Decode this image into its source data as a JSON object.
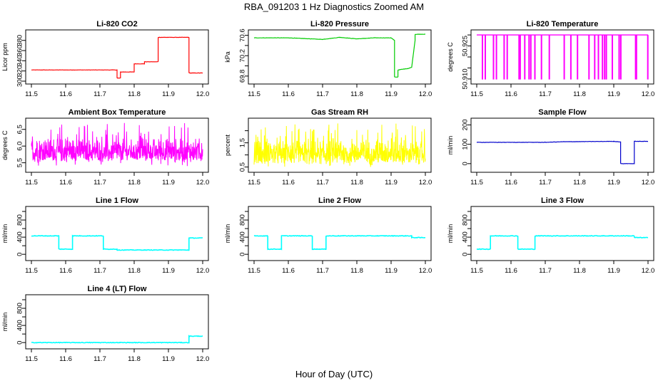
{
  "title": "RBA_091203  1 Hz Diagnostics Zoomed AM",
  "xlabel": "Hour of Day (UTC)",
  "chart_data": [
    {
      "type": "line",
      "title": "Li-820 CO2",
      "ylabel": "Licor ppm",
      "color": "#ff0000",
      "xlim": [
        11.5,
        12.0
      ],
      "ylim": [
        300,
        395
      ],
      "yticks": [
        "300",
        "320",
        "340",
        "360",
        "380"
      ],
      "xticks": [
        "11.5",
        "11.6",
        "11.7",
        "11.8",
        "11.9",
        "12.0"
      ],
      "x": [
        11.5,
        11.75,
        11.75,
        11.76,
        11.76,
        11.8,
        11.8,
        11.83,
        11.83,
        11.87,
        11.87,
        11.96,
        11.96,
        12.0
      ],
      "y": [
        322,
        322,
        306,
        306,
        318,
        318,
        334,
        334,
        338,
        338,
        386,
        386,
        316,
        316
      ]
    },
    {
      "type": "line",
      "title": "Li-820 Pressure",
      "ylabel": "kPa",
      "color": "#00cc00",
      "xlim": [
        11.5,
        12.0
      ],
      "ylim": [
        69.7,
        70.65
      ],
      "yticks": [
        "69.8",
        "70.2",
        "70.6"
      ],
      "yticks_minor": [
        "70.0",
        "70.4"
      ],
      "xticks": [
        "11.5",
        "11.6",
        "11.7",
        "11.8",
        "11.9",
        "12.0"
      ],
      "x": [
        11.5,
        11.6,
        11.7,
        11.75,
        11.8,
        11.85,
        11.9,
        11.91,
        11.91,
        11.92,
        11.92,
        11.95,
        11.96,
        11.97,
        11.97,
        12.0
      ],
      "y": [
        70.55,
        70.55,
        70.52,
        70.56,
        70.53,
        70.55,
        70.55,
        70.5,
        69.78,
        69.78,
        69.92,
        69.95,
        69.97,
        70.5,
        70.62,
        70.62
      ]
    },
    {
      "type": "line",
      "title": "Li-820 Temperature",
      "ylabel": "degrees C",
      "color": "#ff00ff",
      "xlim": [
        11.5,
        12.0
      ],
      "ylim": [
        50.909,
        50.931
      ],
      "yticks": [
        "50.910",
        "50.925"
      ],
      "yticks_minor": [
        "50.915",
        "50.920",
        "50.930"
      ],
      "xticks": [
        "11.5",
        "11.6",
        "11.7",
        "11.8",
        "11.9",
        "12.0"
      ],
      "y_levels": [
        50.91,
        50.93
      ]
    },
    {
      "type": "line",
      "title": "Ambient Box Temperature",
      "ylabel": "degrees C",
      "color": "#ff00ff",
      "xlim": [
        11.5,
        12.0
      ],
      "ylim": [
        5.3,
        6.75
      ],
      "yticks": [
        "5.5",
        "6.0",
        "6.5"
      ],
      "xticks": [
        "11.5",
        "11.6",
        "11.7",
        "11.8",
        "11.9",
        "12.0"
      ],
      "y_range_noise": [
        5.4,
        6.7
      ],
      "y_center": 5.8
    },
    {
      "type": "line",
      "title": "Gas Stream RH",
      "ylabel": "percent",
      "color": "#ffff00",
      "xlim": [
        11.5,
        12.0
      ],
      "ylim": [
        0.4,
        2.4
      ],
      "yticks": [
        "0.5",
        "1.5"
      ],
      "yticks_minor": [
        "1.0",
        "2.0"
      ],
      "xticks": [
        "11.5",
        "11.6",
        "11.7",
        "11.8",
        "11.9",
        "12.0"
      ],
      "y_range_noise": [
        0.5,
        2.3
      ],
      "y_center": 1.0
    },
    {
      "type": "line",
      "title": "Sample Flow",
      "ylabel": "ml/min",
      "color": "#0000cc",
      "xlim": [
        11.5,
        12.0
      ],
      "ylim": [
        -30,
        220
      ],
      "yticks": [
        "0",
        "100",
        "200"
      ],
      "xticks": [
        "11.5",
        "11.6",
        "11.7",
        "11.8",
        "11.9",
        "12.0"
      ],
      "x": [
        11.5,
        11.7,
        11.75,
        11.9,
        11.92,
        11.92,
        11.96,
        11.96,
        12.0
      ],
      "y": [
        110,
        110,
        113,
        115,
        112,
        0,
        0,
        115,
        115
      ]
    },
    {
      "type": "line",
      "title": "Line 1 Flow",
      "ylabel": "ml/min",
      "color": "#00ffff",
      "xlim": [
        11.5,
        12.0
      ],
      "ylim": [
        -80,
        1050
      ],
      "yticks": [
        "0",
        "400",
        "800"
      ],
      "yticks_minor": [
        "200",
        "600",
        "1000"
      ],
      "xticks": [
        "11.5",
        "11.6",
        "11.7",
        "11.8",
        "11.9",
        "12.0"
      ],
      "x": [
        11.5,
        11.58,
        11.58,
        11.62,
        11.62,
        11.71,
        11.71,
        11.75,
        11.75,
        11.96,
        11.96,
        12.0
      ],
      "y": [
        430,
        430,
        120,
        120,
        430,
        430,
        120,
        120,
        100,
        100,
        380,
        380
      ]
    },
    {
      "type": "line",
      "title": "Line 2 Flow",
      "ylabel": "ml/min",
      "color": "#00ffff",
      "xlim": [
        11.5,
        12.0
      ],
      "ylim": [
        -80,
        1050
      ],
      "yticks": [
        "0",
        "400",
        "800"
      ],
      "yticks_minor": [
        "200",
        "600",
        "1000"
      ],
      "xticks": [
        "11.5",
        "11.6",
        "11.7",
        "11.8",
        "11.9",
        "12.0"
      ],
      "x": [
        11.5,
        11.54,
        11.54,
        11.58,
        11.58,
        11.67,
        11.67,
        11.71,
        11.71,
        11.96,
        11.96,
        12.0
      ],
      "y": [
        430,
        430,
        120,
        120,
        430,
        430,
        120,
        120,
        430,
        430,
        390,
        390
      ]
    },
    {
      "type": "line",
      "title": "Line 3 Flow",
      "ylabel": "ml/min",
      "color": "#00ffff",
      "xlim": [
        11.5,
        12.0
      ],
      "ylim": [
        -80,
        1050
      ],
      "yticks": [
        "0",
        "400",
        "800"
      ],
      "yticks_minor": [
        "200",
        "600",
        "1000"
      ],
      "xticks": [
        "11.5",
        "11.6",
        "11.7",
        "11.8",
        "11.9",
        "12.0"
      ],
      "x": [
        11.5,
        11.54,
        11.54,
        11.62,
        11.62,
        11.67,
        11.67,
        11.96,
        11.96,
        12.0
      ],
      "y": [
        120,
        120,
        430,
        430,
        120,
        120,
        430,
        430,
        390,
        390
      ]
    },
    {
      "type": "line",
      "title": "Line 4 (LT) Flow",
      "ylabel": "ml/min",
      "color": "#00ffff",
      "xlim": [
        11.5,
        12.0
      ],
      "ylim": [
        -80,
        1050
      ],
      "yticks": [
        "0",
        "400",
        "800"
      ],
      "yticks_minor": [
        "200",
        "600",
        "1000"
      ],
      "xticks": [
        "11.5",
        "11.6",
        "11.7",
        "11.8",
        "11.9",
        "12.0"
      ],
      "x": [
        11.5,
        11.96,
        11.96,
        12.0
      ],
      "y": [
        0,
        0,
        150,
        150
      ]
    }
  ]
}
